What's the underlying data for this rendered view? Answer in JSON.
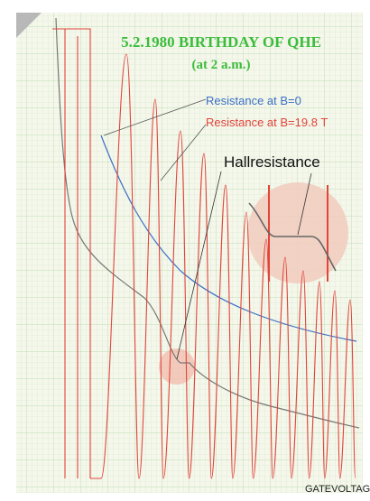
{
  "title": "5.2.1980  BIRTHDAY OF QHE",
  "subtitle": "(at 2 a.m.)",
  "legend": [
    {
      "label": "Resistance at B=0",
      "color": "#3b6fc6"
    },
    {
      "label": "Resistance at B=19.8 T",
      "color": "#e2443c"
    }
  ],
  "annotation": "Hallresistance",
  "x_axis_label": "GATEVOLTAGE"
}
